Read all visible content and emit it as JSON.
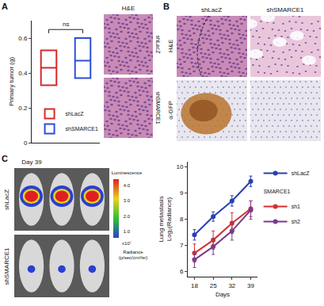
{
  "panel_labels": [
    "A",
    "B",
    "C"
  ],
  "chart_data": [
    {
      "type": "box",
      "y_label": "Primary tumor (g)",
      "series": [
        {
          "name": "shLacZ",
          "color": "#d42a2a",
          "q1": 0.33,
          "median": 0.43,
          "q3": 0.53
        },
        {
          "name": "shSMARCE1",
          "color": "#2b4fd8",
          "q1": 0.37,
          "median": 0.47,
          "q3": 0.6
        }
      ],
      "ylim": [
        0,
        0.7
      ],
      "yticks": [
        0,
        0.2,
        0.4,
        0.6
      ],
      "annotations": [
        {
          "text": "ns",
          "between": [
            "shLacZ",
            "shSMARCE1"
          ]
        }
      ],
      "legend": "lower left",
      "tick_labels": "y"
    },
    {
      "type": "line",
      "x_label": "Days",
      "y_label": "Lung metastasis\nLog₂(Radiance)",
      "x": [
        18,
        25,
        32,
        39
      ],
      "series": [
        {
          "name": "shLacZ",
          "color": "#2b3fb0",
          "values": [
            7.4,
            8.1,
            8.7,
            9.45
          ],
          "error": [
            0.2,
            0.18,
            0.2,
            0.2
          ]
        },
        {
          "name": "sh1",
          "group": "SMARCE1",
          "color": "#d6302e",
          "values": [
            6.7,
            7.2,
            7.85,
            8.4
          ],
          "error": [
            0.35,
            0.35,
            0.4,
            0.3
          ]
        },
        {
          "name": "sh2",
          "group": "SMARCE1",
          "color": "#7b3a8a",
          "values": [
            6.45,
            6.95,
            7.55,
            8.35
          ],
          "error": [
            0.3,
            0.3,
            0.35,
            0.35
          ]
        }
      ],
      "xlim": [
        15.5,
        41.5
      ],
      "xticks": [
        18,
        25,
        32,
        39
      ],
      "ylim": [
        5.8,
        10.2
      ],
      "yticks": [
        6,
        7,
        8,
        9,
        10
      ],
      "marker": "circle",
      "legend": "right"
    }
  ],
  "panel_a_images": {
    "header": "H&E",
    "rows": [
      "shLacZ",
      "shSMARCE1"
    ]
  },
  "panel_b_images": {
    "columns": [
      "shLacZ",
      "shSMARCE1"
    ],
    "rows": [
      "H&E",
      "α-GFP"
    ]
  },
  "panel_c_images": {
    "title": "Day 39",
    "rows": [
      "shLacZ",
      "shSMARCE1"
    ],
    "colorbar": {
      "title": "Luminescence",
      "range": [
        0.6,
        4.4
      ],
      "ticks": [
        {
          "value": 4,
          "label": "4.0"
        },
        {
          "value": 3,
          "label": "3.0"
        },
        {
          "value": 2,
          "label": "2.0"
        },
        {
          "value": 1,
          "label": "1.0"
        }
      ],
      "multiplier": "x10⁷",
      "unit": "Radiance\n(p/sec/cm²/sr)"
    }
  }
}
